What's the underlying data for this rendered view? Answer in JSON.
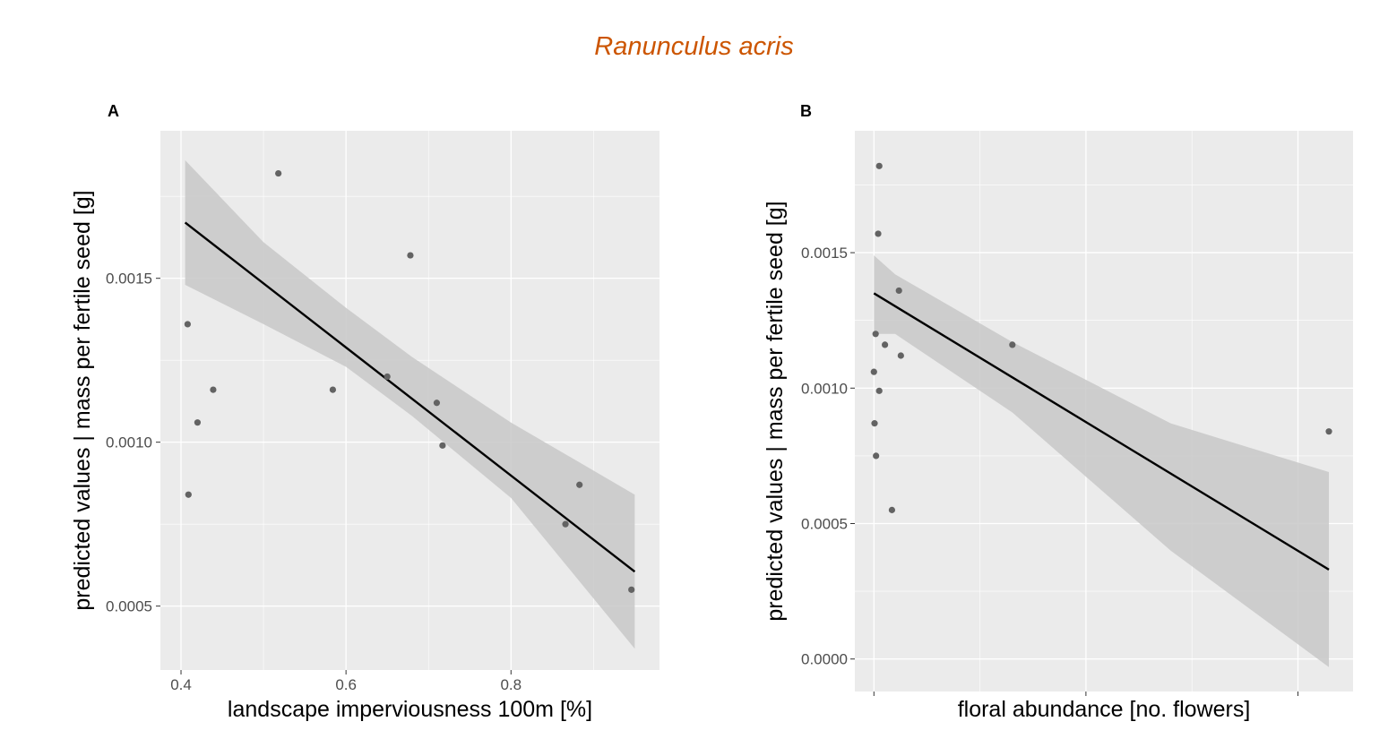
{
  "title": "Ranunculus acris",
  "colors": {
    "title": "#CC5500",
    "panel_bg": "#EBEBEB",
    "grid": "#FFFFFF",
    "ribbon": "#C8C8C8",
    "line": "#000000",
    "points": "#636363"
  },
  "chart_data": [
    {
      "type": "scatter",
      "panel": "A",
      "xlabel": "landscape imperviousness 100m [%]",
      "ylabel": "predicted values | mass per fertile seed [g]",
      "xlim": [
        0.375,
        0.98
      ],
      "ylim": [
        0.000305,
        0.00195
      ],
      "x_ticks": [
        0.4,
        0.6,
        0.8
      ],
      "x_tick_labels": [
        "0.4",
        "0.6",
        "0.8"
      ],
      "y_ticks": [
        0.0005,
        0.001,
        0.0015
      ],
      "y_tick_labels": [
        "0.0005",
        "0.0010",
        "0.0015"
      ],
      "grid": true,
      "points": [
        {
          "x": 0.408,
          "y": 0.00136
        },
        {
          "x": 0.409,
          "y": 0.00084
        },
        {
          "x": 0.42,
          "y": 0.00106
        },
        {
          "x": 0.439,
          "y": 0.00116
        },
        {
          "x": 0.518,
          "y": 0.00182
        },
        {
          "x": 0.584,
          "y": 0.00116
        },
        {
          "x": 0.65,
          "y": 0.0012
        },
        {
          "x": 0.678,
          "y": 0.00157
        },
        {
          "x": 0.71,
          "y": 0.00112
        },
        {
          "x": 0.717,
          "y": 0.00099
        },
        {
          "x": 0.866,
          "y": 0.00075
        },
        {
          "x": 0.883,
          "y": 0.00087
        },
        {
          "x": 0.946,
          "y": 0.00055
        }
      ],
      "fit_line": [
        {
          "x": 0.405,
          "y": 0.00167
        },
        {
          "x": 0.95,
          "y": 0.000605
        }
      ],
      "ribbon": [
        {
          "x": 0.405,
          "lo": 0.00148,
          "hi": 0.00186
        },
        {
          "x": 0.5,
          "lo": 0.00136,
          "hi": 0.00161
        },
        {
          "x": 0.6,
          "lo": 0.00123,
          "hi": 0.00141
        },
        {
          "x": 0.68,
          "lo": 0.00108,
          "hi": 0.00126
        },
        {
          "x": 0.8,
          "lo": 0.00083,
          "hi": 0.00106
        },
        {
          "x": 0.95,
          "lo": 0.00037,
          "hi": 0.00084
        }
      ]
    },
    {
      "type": "scatter",
      "panel": "B",
      "xlabel": "floral abundance [no. flowers]",
      "ylabel": "predicted values | mass per fertile seed [g]",
      "xlim": [
        -90,
        2260
      ],
      "ylim": [
        -0.00012,
        0.00195
      ],
      "x_ticks": [
        0,
        1000,
        2000
      ],
      "x_tick_labels": [
        "",
        "",
        ""
      ],
      "y_ticks": [
        0.0,
        0.0005,
        0.001,
        0.0015
      ],
      "y_tick_labels": [
        "0.0000",
        "0.0005",
        "0.0010",
        "0.0015"
      ],
      "grid": true,
      "points": [
        {
          "x": 0,
          "y": 0.00106
        },
        {
          "x": 3,
          "y": 0.00087
        },
        {
          "x": 8,
          "y": 0.0012
        },
        {
          "x": 10,
          "y": 0.00075
        },
        {
          "x": 20,
          "y": 0.00157
        },
        {
          "x": 25,
          "y": 0.00099
        },
        {
          "x": 25,
          "y": 0.00182
        },
        {
          "x": 52,
          "y": 0.00116
        },
        {
          "x": 85,
          "y": 0.00055
        },
        {
          "x": 118,
          "y": 0.00136
        },
        {
          "x": 127,
          "y": 0.00112
        },
        {
          "x": 653,
          "y": 0.00116
        },
        {
          "x": 2146,
          "y": 0.00084
        }
      ],
      "fit_line": [
        {
          "x": 0,
          "y": 0.00135
        },
        {
          "x": 2146,
          "y": 0.00033
        }
      ],
      "ribbon": [
        {
          "x": 0,
          "lo": 0.0012,
          "hi": 0.00149
        },
        {
          "x": 100,
          "lo": 0.0012,
          "hi": 0.00142
        },
        {
          "x": 653,
          "lo": 0.00091,
          "hi": 0.00117
        },
        {
          "x": 1400,
          "lo": 0.0004,
          "hi": 0.00087
        },
        {
          "x": 2146,
          "lo": -3e-05,
          "hi": 0.00069
        }
      ]
    }
  ]
}
